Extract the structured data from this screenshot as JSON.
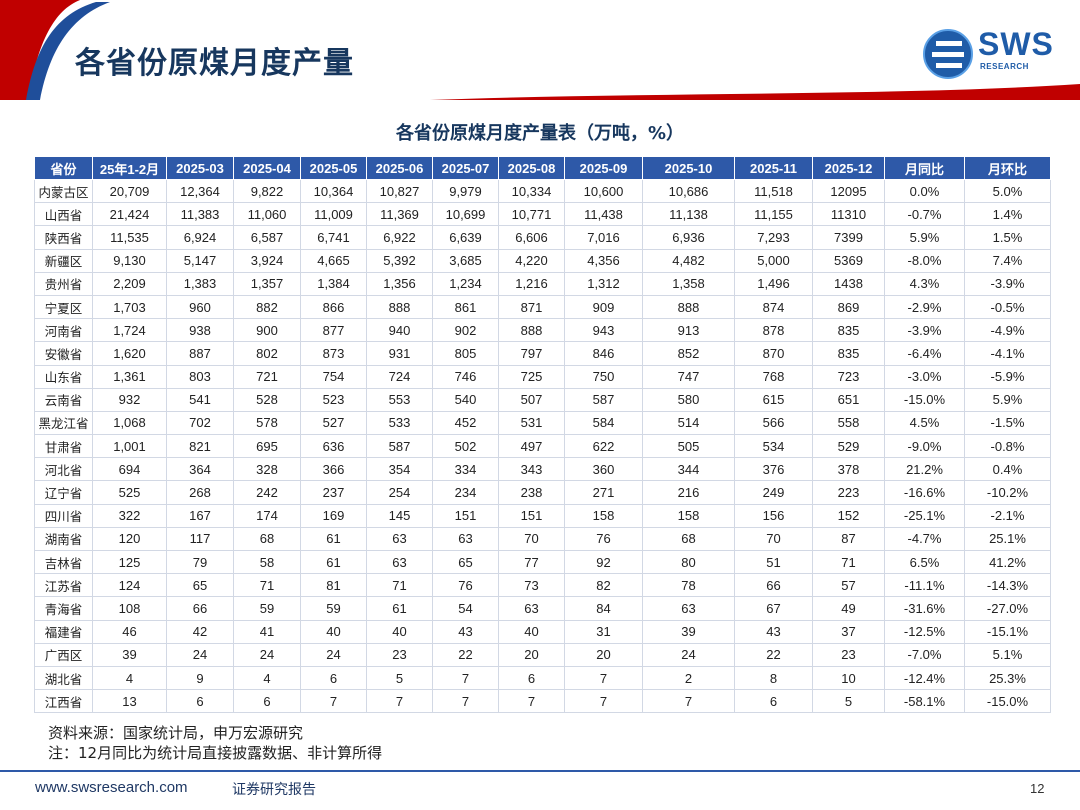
{
  "header": {
    "title": "各省份原煤月度产量",
    "logo_text": "SWS",
    "logo_sub": "RESEARCH",
    "colors": {
      "accent_red": "#c00000",
      "brand_blue": "#1f5ca8",
      "header_blue": "#2e59a8"
    }
  },
  "chart_data": {
    "type": "table",
    "title": "各省份原煤月度产量表（万吨，%）",
    "columns": [
      "省份",
      "25年1-2月",
      "2025-03",
      "2025-04",
      "2025-05",
      "2025-06",
      "2025-07",
      "2025-08",
      "2025-09",
      "2025-10",
      "2025-11",
      "2025-12",
      "月同比",
      "月环比"
    ],
    "rows": [
      [
        "内蒙古区",
        "20,709",
        "12,364",
        "9,822",
        "10,364",
        "10,827",
        "9,979",
        "10,334",
        "10,600",
        "10,686",
        "11,518",
        "12095",
        "0.0%",
        "5.0%"
      ],
      [
        "山西省",
        "21,424",
        "11,383",
        "11,060",
        "11,009",
        "11,369",
        "10,699",
        "10,771",
        "11,438",
        "11,138",
        "11,155",
        "11310",
        "-0.7%",
        "1.4%"
      ],
      [
        "陕西省",
        "11,535",
        "6,924",
        "6,587",
        "6,741",
        "6,922",
        "6,639",
        "6,606",
        "7,016",
        "6,936",
        "7,293",
        "7399",
        "5.9%",
        "1.5%"
      ],
      [
        "新疆区",
        "9,130",
        "5,147",
        "3,924",
        "4,665",
        "5,392",
        "3,685",
        "4,220",
        "4,356",
        "4,482",
        "5,000",
        "5369",
        "-8.0%",
        "7.4%"
      ],
      [
        "贵州省",
        "2,209",
        "1,383",
        "1,357",
        "1,384",
        "1,356",
        "1,234",
        "1,216",
        "1,312",
        "1,358",
        "1,496",
        "1438",
        "4.3%",
        "-3.9%"
      ],
      [
        "宁夏区",
        "1,703",
        "960",
        "882",
        "866",
        "888",
        "861",
        "871",
        "909",
        "888",
        "874",
        "869",
        "-2.9%",
        "-0.5%"
      ],
      [
        "河南省",
        "1,724",
        "938",
        "900",
        "877",
        "940",
        "902",
        "888",
        "943",
        "913",
        "878",
        "835",
        "-3.9%",
        "-4.9%"
      ],
      [
        "安徽省",
        "1,620",
        "887",
        "802",
        "873",
        "931",
        "805",
        "797",
        "846",
        "852",
        "870",
        "835",
        "-6.4%",
        "-4.1%"
      ],
      [
        "山东省",
        "1,361",
        "803",
        "721",
        "754",
        "724",
        "746",
        "725",
        "750",
        "747",
        "768",
        "723",
        "-3.0%",
        "-5.9%"
      ],
      [
        "云南省",
        "932",
        "541",
        "528",
        "523",
        "553",
        "540",
        "507",
        "587",
        "580",
        "615",
        "651",
        "-15.0%",
        "5.9%"
      ],
      [
        "黑龙江省",
        "1,068",
        "702",
        "578",
        "527",
        "533",
        "452",
        "531",
        "584",
        "514",
        "566",
        "558",
        "4.5%",
        "-1.5%"
      ],
      [
        "甘肃省",
        "1,001",
        "821",
        "695",
        "636",
        "587",
        "502",
        "497",
        "622",
        "505",
        "534",
        "529",
        "-9.0%",
        "-0.8%"
      ],
      [
        "河北省",
        "694",
        "364",
        "328",
        "366",
        "354",
        "334",
        "343",
        "360",
        "344",
        "376",
        "378",
        "21.2%",
        "0.4%"
      ],
      [
        "辽宁省",
        "525",
        "268",
        "242",
        "237",
        "254",
        "234",
        "238",
        "271",
        "216",
        "249",
        "223",
        "-16.6%",
        "-10.2%"
      ],
      [
        "四川省",
        "322",
        "167",
        "174",
        "169",
        "145",
        "151",
        "151",
        "158",
        "158",
        "156",
        "152",
        "-25.1%",
        "-2.1%"
      ],
      [
        "湖南省",
        "120",
        "117",
        "68",
        "61",
        "63",
        "63",
        "70",
        "76",
        "68",
        "70",
        "87",
        "-4.7%",
        "25.1%"
      ],
      [
        "吉林省",
        "125",
        "79",
        "58",
        "61",
        "63",
        "65",
        "77",
        "92",
        "80",
        "51",
        "71",
        "6.5%",
        "41.2%"
      ],
      [
        "江苏省",
        "124",
        "65",
        "71",
        "81",
        "71",
        "76",
        "73",
        "82",
        "78",
        "66",
        "57",
        "-11.1%",
        "-14.3%"
      ],
      [
        "青海省",
        "108",
        "66",
        "59",
        "59",
        "61",
        "54",
        "63",
        "84",
        "63",
        "67",
        "49",
        "-31.6%",
        "-27.0%"
      ],
      [
        "福建省",
        "46",
        "42",
        "41",
        "40",
        "40",
        "43",
        "40",
        "31",
        "39",
        "43",
        "37",
        "-12.5%",
        "-15.1%"
      ],
      [
        "广西区",
        "39",
        "24",
        "24",
        "24",
        "23",
        "22",
        "20",
        "20",
        "24",
        "22",
        "23",
        "-7.0%",
        "5.1%"
      ],
      [
        "湖北省",
        "4",
        "9",
        "4",
        "6",
        "5",
        "7",
        "6",
        "7",
        "2",
        "8",
        "10",
        "-12.4%",
        "25.3%"
      ],
      [
        "江西省",
        "13",
        "6",
        "6",
        "7",
        "7",
        "7",
        "7",
        "7",
        "7",
        "6",
        "5",
        "-58.1%",
        "-15.0%"
      ]
    ]
  },
  "notes": {
    "source": "资料来源：国家统计局，申万宏源研究",
    "note": "注：12月同比为统计局直接披露数据、非计算所得"
  },
  "footer": {
    "url": "www.swsresearch.com",
    "tag": "证券研究报告",
    "page": "12"
  }
}
